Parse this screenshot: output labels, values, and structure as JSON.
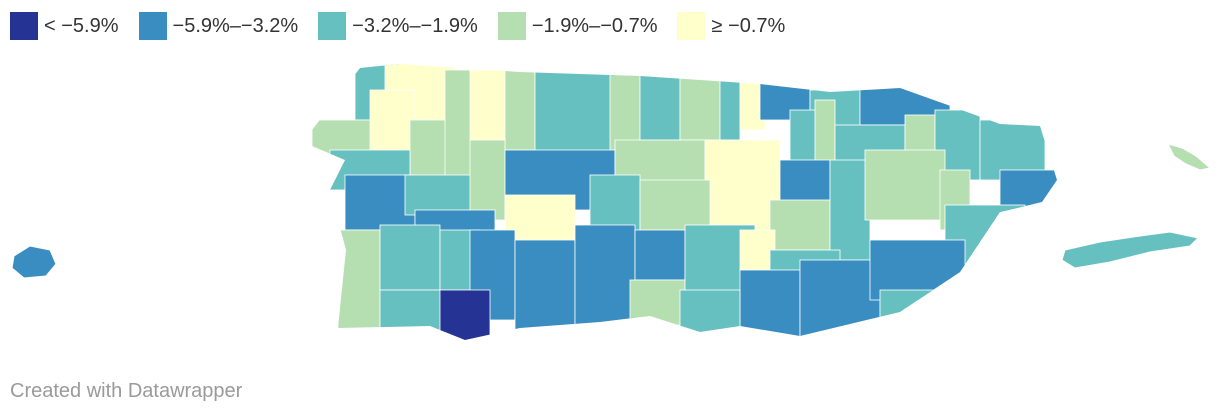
{
  "legend": {
    "items": [
      {
        "label": "< −5.9%",
        "color": "#253494"
      },
      {
        "label": "−5.9%–−3.2%",
        "color": "#3a8dc0"
      },
      {
        "label": "−3.2%–−1.9%",
        "color": "#67c0c0"
      },
      {
        "label": "−1.9%–−0.7%",
        "color": "#b5dfb0"
      },
      {
        "label": "≥ −0.7%",
        "color": "#ffffcc"
      }
    ]
  },
  "credit": "Created with Datawrapper"
}
